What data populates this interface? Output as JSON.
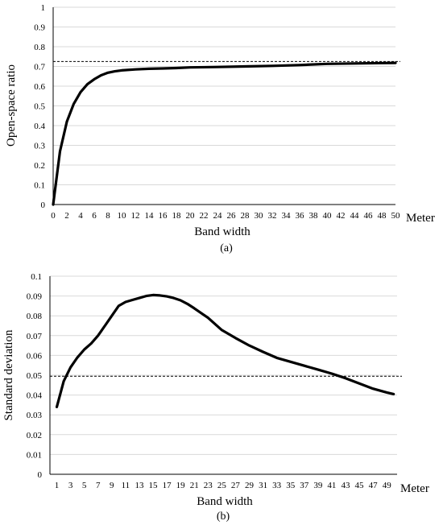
{
  "chart_data": [
    {
      "type": "line",
      "caption": "(a)",
      "xlabel": "Band width",
      "ylabel": "Open-space ratio",
      "x_unit": "Meter",
      "ylim": [
        0,
        1
      ],
      "y_ticks": [
        0,
        0.1,
        0.2,
        0.3,
        0.4,
        0.5,
        0.6,
        0.7,
        0.8,
        0.9,
        1
      ],
      "y_tick_labels": [
        "0",
        "0.1",
        "0.2",
        "0.3",
        "0.4",
        "0.5",
        "0.6",
        "0.7",
        "0.8",
        "0.9",
        "1"
      ],
      "xlim": [
        0,
        50
      ],
      "x_ticks": [
        0,
        2,
        4,
        6,
        8,
        10,
        12,
        14,
        16,
        18,
        20,
        22,
        24,
        26,
        28,
        30,
        32,
        34,
        36,
        38,
        40,
        42,
        44,
        46,
        48,
        50
      ],
      "x_tick_labels": [
        "0",
        "2",
        "4",
        "6",
        "8",
        "10",
        "12",
        "14",
        "16",
        "18",
        "20",
        "22",
        "24",
        "26",
        "28",
        "30",
        "32",
        "34",
        "36",
        "38",
        "40",
        "42",
        "44",
        "46",
        "48",
        "50"
      ],
      "grid": true,
      "reference_line": 0.725,
      "x": [
        0,
        1,
        2,
        3,
        4,
        5,
        6,
        7,
        8,
        9,
        10,
        12,
        14,
        16,
        18,
        20,
        24,
        28,
        32,
        36,
        40,
        44,
        48,
        50
      ],
      "values": [
        0,
        0.27,
        0.42,
        0.51,
        0.57,
        0.61,
        0.635,
        0.655,
        0.668,
        0.675,
        0.68,
        0.685,
        0.688,
        0.69,
        0.692,
        0.695,
        0.697,
        0.7,
        0.703,
        0.707,
        0.713,
        0.715,
        0.717,
        0.718
      ]
    },
    {
      "type": "line",
      "caption": "(b)",
      "xlabel": "Band width",
      "ylabel": "Standard deviation",
      "x_unit": "Meter",
      "ylim": [
        0,
        0.1
      ],
      "y_ticks": [
        0,
        0.01,
        0.02,
        0.03,
        0.04,
        0.05,
        0.06,
        0.07,
        0.08,
        0.09,
        0.1
      ],
      "y_tick_labels": [
        "0",
        "0.01",
        "0.02",
        "0.03",
        "0.04",
        "0.05",
        "0.06",
        "0.07",
        "0.08",
        "0.09",
        "0.1"
      ],
      "xlim": [
        0,
        50.5
      ],
      "x_ticks": [
        1,
        3,
        5,
        7,
        9,
        11,
        13,
        15,
        17,
        19,
        21,
        23,
        25,
        27,
        29,
        31,
        33,
        35,
        37,
        39,
        41,
        43,
        45,
        47,
        49
      ],
      "x_tick_labels": [
        "1",
        "3",
        "5",
        "7",
        "9",
        "11",
        "13",
        "15",
        "17",
        "19",
        "21",
        "23",
        "25",
        "27",
        "29",
        "31",
        "33",
        "35",
        "37",
        "39",
        "41",
        "43",
        "45",
        "47",
        "49"
      ],
      "grid": true,
      "reference_line": 0.0495,
      "x": [
        1,
        2,
        3,
        4,
        5,
        6,
        7,
        8,
        9,
        10,
        11,
        12,
        13,
        14,
        15,
        16,
        17,
        18,
        19,
        20,
        21,
        23,
        25,
        27,
        29,
        31,
        33,
        35,
        37,
        39,
        41,
        43,
        45,
        47,
        49,
        50
      ],
      "values": [
        0.034,
        0.047,
        0.054,
        0.059,
        0.063,
        0.066,
        0.07,
        0.075,
        0.08,
        0.085,
        0.087,
        0.088,
        0.089,
        0.09,
        0.0905,
        0.0903,
        0.0898,
        0.089,
        0.0878,
        0.086,
        0.0838,
        0.079,
        0.0728,
        0.0688,
        0.065,
        0.0618,
        0.0588,
        0.0568,
        0.0548,
        0.0528,
        0.0508,
        0.0485,
        0.0458,
        0.0432,
        0.0413,
        0.0405
      ]
    }
  ]
}
